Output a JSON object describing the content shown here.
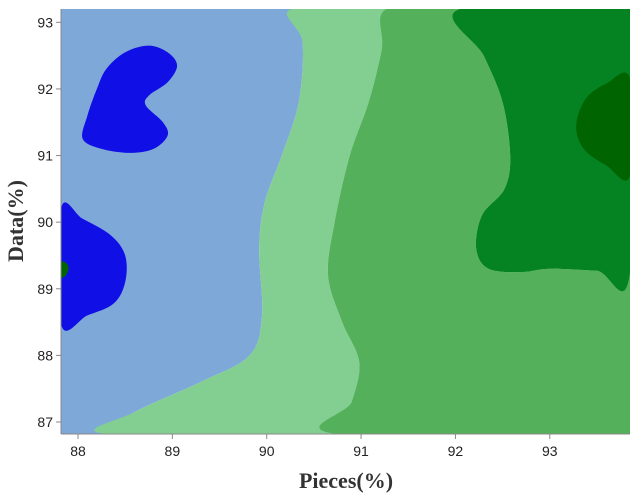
{
  "chart_data": {
    "type": "heatmap",
    "subtype": "filled-contour",
    "title": "",
    "xlabel": "Pieces(%)",
    "ylabel": "Data(%)",
    "xlim": [
      87.82,
      93.85
    ],
    "ylim": [
      86.82,
      93.2
    ],
    "x_ticks": [
      88,
      89,
      90,
      91,
      92,
      93
    ],
    "y_ticks": [
      87,
      88,
      89,
      90,
      91,
      92,
      93
    ],
    "legend": "none",
    "grid": false,
    "level_colors": [
      "#1010e6",
      "#7ea8d8",
      "#82cf91",
      "#55b05c",
      "#058222",
      "#006400"
    ],
    "regions": [
      {
        "level": 1,
        "color": "#7ea8d8",
        "points": [
          [
            87.82,
            86.82
          ],
          [
            87.82,
            93.2
          ],
          [
            90.26,
            93.2
          ],
          [
            90.38,
            92.7
          ],
          [
            90.34,
            91.8
          ],
          [
            90.16,
            91.0
          ],
          [
            89.98,
            90.3
          ],
          [
            89.92,
            89.6
          ],
          [
            89.95,
            88.6
          ],
          [
            89.82,
            88.0
          ],
          [
            89.3,
            87.6
          ],
          [
            88.6,
            87.15
          ],
          [
            88.3,
            86.82
          ]
        ]
      },
      {
        "level": 2,
        "color": "#82cf91",
        "points": [
          [
            88.3,
            86.82
          ],
          [
            88.6,
            87.15
          ],
          [
            89.3,
            87.6
          ],
          [
            89.82,
            88.0
          ],
          [
            89.95,
            88.6
          ],
          [
            89.92,
            89.6
          ],
          [
            89.98,
            90.3
          ],
          [
            90.16,
            91.0
          ],
          [
            90.34,
            91.8
          ],
          [
            90.38,
            92.7
          ],
          [
            90.26,
            93.2
          ],
          [
            91.27,
            93.2
          ],
          [
            91.22,
            92.6
          ],
          [
            91.08,
            91.8
          ],
          [
            90.88,
            91.0
          ],
          [
            90.72,
            90.0
          ],
          [
            90.65,
            89.2
          ],
          [
            90.8,
            88.5
          ],
          [
            90.98,
            87.9
          ],
          [
            90.9,
            87.3
          ],
          [
            90.75,
            86.82
          ]
        ]
      },
      {
        "level": 3,
        "color": "#55b05c",
        "points": [
          [
            90.75,
            86.82
          ],
          [
            90.9,
            87.3
          ],
          [
            90.98,
            87.9
          ],
          [
            90.8,
            88.5
          ],
          [
            90.65,
            89.2
          ],
          [
            90.72,
            90.0
          ],
          [
            90.88,
            91.0
          ],
          [
            91.08,
            91.8
          ],
          [
            91.22,
            92.6
          ],
          [
            91.27,
            93.2
          ],
          [
            92.05,
            93.2
          ],
          [
            92.3,
            92.5
          ],
          [
            92.5,
            91.8
          ],
          [
            92.58,
            91.0
          ],
          [
            92.52,
            90.5
          ],
          [
            92.28,
            90.1
          ],
          [
            92.22,
            89.6
          ],
          [
            92.35,
            89.3
          ],
          [
            92.7,
            89.25
          ],
          [
            93.0,
            89.3
          ],
          [
            93.5,
            89.27
          ],
          [
            93.85,
            89.25
          ],
          [
            93.85,
            86.82
          ]
        ]
      },
      {
        "level": 4,
        "color": "#058222",
        "points": [
          [
            92.05,
            93.2
          ],
          [
            92.3,
            92.5
          ],
          [
            92.5,
            91.8
          ],
          [
            92.58,
            91.0
          ],
          [
            92.52,
            90.5
          ],
          [
            92.28,
            90.1
          ],
          [
            92.22,
            89.6
          ],
          [
            92.35,
            89.3
          ],
          [
            92.7,
            89.25
          ],
          [
            93.0,
            89.3
          ],
          [
            93.5,
            89.27
          ],
          [
            93.85,
            89.25
          ],
          [
            93.85,
            93.2
          ]
        ]
      },
      {
        "level": 5,
        "color": "#006400",
        "points": [
          [
            93.85,
            92.15
          ],
          [
            93.6,
            92.08
          ],
          [
            93.38,
            91.85
          ],
          [
            93.28,
            91.45
          ],
          [
            93.36,
            91.1
          ],
          [
            93.6,
            90.85
          ],
          [
            93.85,
            90.7
          ]
        ]
      },
      {
        "level": 0,
        "color": "#1010e6",
        "points": [
          [
            88.2,
            92.0
          ],
          [
            88.3,
            92.3
          ],
          [
            88.5,
            92.55
          ],
          [
            88.75,
            92.65
          ],
          [
            88.95,
            92.55
          ],
          [
            89.05,
            92.35
          ],
          [
            88.95,
            92.1
          ],
          [
            88.75,
            91.9
          ],
          [
            88.72,
            91.75
          ],
          [
            88.9,
            91.5
          ],
          [
            88.95,
            91.3
          ],
          [
            88.8,
            91.1
          ],
          [
            88.55,
            91.04
          ],
          [
            88.25,
            91.1
          ],
          [
            88.05,
            91.25
          ],
          [
            88.1,
            91.6
          ]
        ]
      },
      {
        "level": 0,
        "color": "#1010e6",
        "points": [
          [
            87.82,
            90.2
          ],
          [
            88.05,
            90.05
          ],
          [
            88.35,
            89.8
          ],
          [
            88.5,
            89.5
          ],
          [
            88.5,
            89.1
          ],
          [
            88.38,
            88.78
          ],
          [
            88.1,
            88.6
          ],
          [
            87.82,
            88.47
          ]
        ]
      },
      {
        "level": 5,
        "color": "#006400",
        "points": [
          [
            87.82,
            89.4
          ],
          [
            87.88,
            89.38
          ],
          [
            87.9,
            89.3
          ],
          [
            87.87,
            89.2
          ],
          [
            87.82,
            89.18
          ]
        ]
      }
    ]
  }
}
